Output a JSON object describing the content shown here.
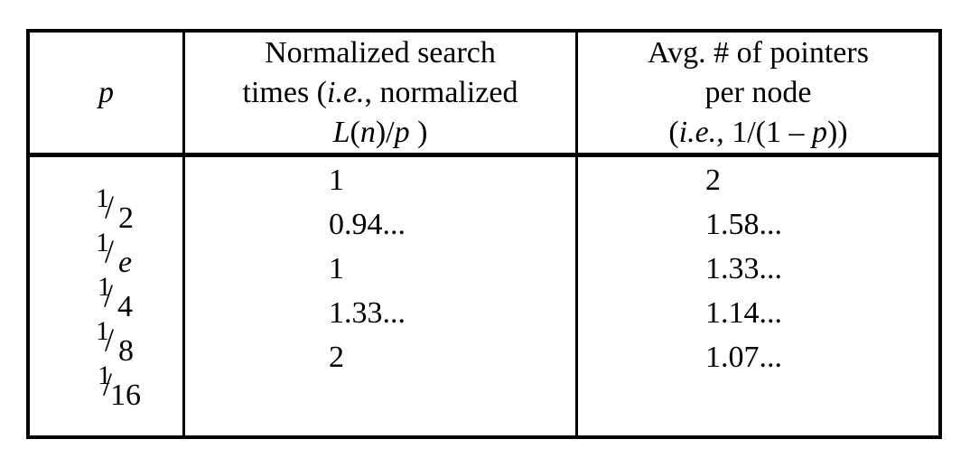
{
  "header": {
    "col1": "p",
    "col2_line1": "Normalized search",
    "col2_line2_pre": "times (",
    "col2_line2_ie": "i.e.",
    "col2_line2_post": ", normalized",
    "col2_line3_L": "L",
    "col2_line3_open": "(",
    "col2_line3_n": "n",
    "col2_line3_close": ")/",
    "col2_line3_p": "p",
    "col2_line3_end": " )",
    "col3_line1": "Avg. # of pointers",
    "col3_line2": "per node",
    "col3_line3_open": "(",
    "col3_line3_ie": "i.e.,",
    "col3_line3_mid": " 1/(1 – ",
    "col3_line3_p": "p",
    "col3_line3_end": "))"
  },
  "rows": [
    {
      "p_num": "1",
      "p_den": "2",
      "search": "1",
      "pointers": "2"
    },
    {
      "p_num": "1",
      "p_den": "e",
      "search": "0.94...",
      "pointers": "1.58..."
    },
    {
      "p_num": "1",
      "p_den": "4",
      "search": "1",
      "pointers": "1.33..."
    },
    {
      "p_num": "1",
      "p_den": "8",
      "search": "1.33...",
      "pointers": "1.14..."
    },
    {
      "p_num": "1",
      "p_den": "16",
      "search": "2",
      "pointers": "1.07..."
    }
  ]
}
